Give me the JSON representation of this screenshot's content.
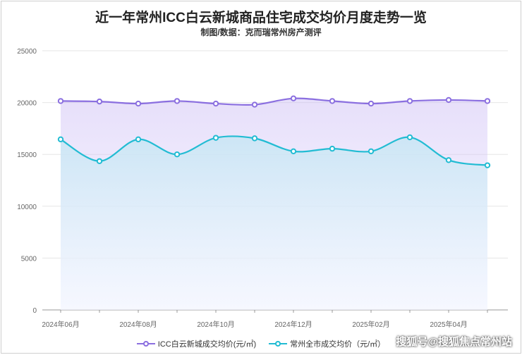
{
  "title": "近一年常州ICC白云新城商品住宅成交均价月度走势一览",
  "subtitle": "制图/数据：克而瑞常州房产测评",
  "watermark": "搜狐号@搜狐焦点常州站",
  "colors": {
    "series_a": "#8b6fe0",
    "series_b": "#22bcd3",
    "grid": "#e6e6e6",
    "axis": "#999999"
  },
  "chart_data": {
    "type": "line",
    "smooth": true,
    "area_fill": true,
    "x": [
      "2024年06月",
      "2024年07月",
      "2024年08月",
      "2024年09月",
      "2024年10月",
      "2024年11月",
      "2024年12月",
      "2025年01月",
      "2025年02月",
      "2025年03月",
      "2025年04月",
      "2025年05月"
    ],
    "xtick_labels": [
      "2024年06月",
      "2024年08月",
      "2024年10月",
      "2024年12月",
      "2025年02月",
      "2025年04月"
    ],
    "ylim": [
      0,
      25000
    ],
    "yticks": [
      0,
      5000,
      10000,
      15000,
      20000,
      25000
    ],
    "grid": true,
    "legend_position": "bottom",
    "series": [
      {
        "name": "ICC白云新城成交均价(元/㎡)",
        "values": [
          20150,
          20100,
          19900,
          20150,
          19900,
          19800,
          20400,
          20150,
          19900,
          20150,
          20250,
          20150
        ]
      },
      {
        "name": "常州全市成交均价（元/㎡）",
        "values": [
          16450,
          14350,
          16450,
          15000,
          16600,
          16550,
          15300,
          15550,
          15300,
          16650,
          14450,
          13950
        ]
      }
    ]
  }
}
